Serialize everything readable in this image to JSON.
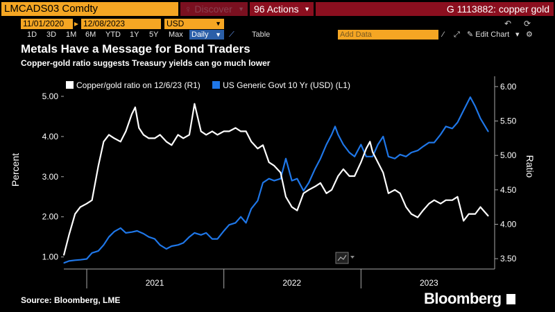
{
  "topbar": {
    "ticker": "LMCADS03 Comdty",
    "discover": "Discover",
    "actions": "Actions",
    "title": "G 1113882: copper gold"
  },
  "daterow": {
    "start_date": "11/01/2020",
    "end_date": "12/08/2023",
    "currency": "USD"
  },
  "rangerow": {
    "ranges": [
      "1D",
      "3D",
      "1M",
      "6M",
      "YTD",
      "1Y",
      "5Y",
      "Max"
    ],
    "frequency": "Daily",
    "table_label": "Table",
    "add_data_placeholder": "Add Data",
    "edit_chart": "Edit Chart"
  },
  "headline": "Metals Have a Message for Bond Traders",
  "subhead": "Copper-gold ratio suggests Treasury yields can go much lower",
  "footer": {
    "source": "Source: Bloomberg, LME",
    "brand": "Bloomberg"
  },
  "colors": {
    "copper_gold_line": "#ffffff",
    "yield_line": "#1f77e8",
    "ticker_bg": "#f5a623",
    "bar_red": "#8b0f1f"
  },
  "chart_data": {
    "type": "line",
    "left_axis": {
      "label": "Percent",
      "ticks": [
        "1.00",
        "2.00",
        "3.00",
        "4.00",
        "5.00"
      ],
      "range": [
        0.7,
        5.5
      ]
    },
    "right_axis": {
      "label": "Ratio",
      "ticks": [
        "3.50",
        "4.00",
        "4.50",
        "5.00",
        "5.50",
        "6.00"
      ],
      "range": [
        3.35,
        6.15
      ]
    },
    "x_axis": {
      "ticks": [
        "2021",
        "2022",
        "2023"
      ]
    },
    "series": [
      {
        "name": "Copper/gold ratio on 12/6/23 (R1)",
        "axis": "right",
        "points": [
          [
            "2020-11-01",
            3.55
          ],
          [
            "2020-11-15",
            3.85
          ],
          [
            "2020-12-01",
            4.15
          ],
          [
            "2020-12-15",
            4.25
          ],
          [
            "2021-01-01",
            4.3
          ],
          [
            "2021-01-15",
            4.35
          ],
          [
            "2021-02-01",
            4.85
          ],
          [
            "2021-02-15",
            5.2
          ],
          [
            "2021-03-01",
            5.3
          ],
          [
            "2021-03-15",
            5.25
          ],
          [
            "2021-04-01",
            5.2
          ],
          [
            "2021-04-15",
            5.35
          ],
          [
            "2021-05-01",
            5.6
          ],
          [
            "2021-05-10",
            5.7
          ],
          [
            "2021-05-20",
            5.4
          ],
          [
            "2021-06-01",
            5.3
          ],
          [
            "2021-06-15",
            5.25
          ],
          [
            "2021-07-01",
            5.25
          ],
          [
            "2021-07-15",
            5.3
          ],
          [
            "2021-08-01",
            5.2
          ],
          [
            "2021-08-15",
            5.15
          ],
          [
            "2021-09-01",
            5.3
          ],
          [
            "2021-09-15",
            5.25
          ],
          [
            "2021-10-01",
            5.3
          ],
          [
            "2021-10-15",
            5.75
          ],
          [
            "2021-11-01",
            5.35
          ],
          [
            "2021-11-15",
            5.3
          ],
          [
            "2021-12-01",
            5.35
          ],
          [
            "2021-12-15",
            5.3
          ],
          [
            "2022-01-01",
            5.35
          ],
          [
            "2022-01-15",
            5.35
          ],
          [
            "2022-02-01",
            5.4
          ],
          [
            "2022-02-15",
            5.35
          ],
          [
            "2022-03-01",
            5.35
          ],
          [
            "2022-03-15",
            5.2
          ],
          [
            "2022-04-01",
            5.1
          ],
          [
            "2022-04-15",
            5.15
          ],
          [
            "2022-05-01",
            4.9
          ],
          [
            "2022-05-15",
            4.85
          ],
          [
            "2022-06-01",
            4.75
          ],
          [
            "2022-06-15",
            4.4
          ],
          [
            "2022-07-01",
            4.25
          ],
          [
            "2022-07-15",
            4.2
          ],
          [
            "2022-08-01",
            4.45
          ],
          [
            "2022-08-15",
            4.5
          ],
          [
            "2022-09-01",
            4.55
          ],
          [
            "2022-09-15",
            4.6
          ],
          [
            "2022-10-01",
            4.45
          ],
          [
            "2022-10-15",
            4.5
          ],
          [
            "2022-11-01",
            4.7
          ],
          [
            "2022-11-15",
            4.8
          ],
          [
            "2022-12-01",
            4.7
          ],
          [
            "2022-12-15",
            4.7
          ],
          [
            "2023-01-01",
            4.9
          ],
          [
            "2023-01-15",
            5.1
          ],
          [
            "2023-01-25",
            5.2
          ],
          [
            "2023-02-01",
            5.05
          ],
          [
            "2023-02-15",
            4.9
          ],
          [
            "2023-03-01",
            4.75
          ],
          [
            "2023-03-15",
            4.45
          ],
          [
            "2023-04-01",
            4.5
          ],
          [
            "2023-04-15",
            4.45
          ],
          [
            "2023-05-01",
            4.25
          ],
          [
            "2023-05-15",
            4.15
          ],
          [
            "2023-06-01",
            4.1
          ],
          [
            "2023-06-15",
            4.2
          ],
          [
            "2023-07-01",
            4.3
          ],
          [
            "2023-07-15",
            4.35
          ],
          [
            "2023-08-01",
            4.3
          ],
          [
            "2023-08-15",
            4.35
          ],
          [
            "2023-09-01",
            4.35
          ],
          [
            "2023-09-15",
            4.4
          ],
          [
            "2023-10-01",
            4.05
          ],
          [
            "2023-10-15",
            4.15
          ],
          [
            "2023-11-01",
            4.15
          ],
          [
            "2023-11-15",
            4.25
          ],
          [
            "2023-12-06",
            4.12
          ]
        ]
      },
      {
        "name": "US Generic Govt 10 Yr (USD) (L1)",
        "axis": "left",
        "points": [
          [
            "2020-11-01",
            0.85
          ],
          [
            "2020-11-15",
            0.9
          ],
          [
            "2020-12-01",
            0.92
          ],
          [
            "2020-12-15",
            0.93
          ],
          [
            "2021-01-01",
            0.95
          ],
          [
            "2021-01-15",
            1.1
          ],
          [
            "2021-02-01",
            1.15
          ],
          [
            "2021-02-15",
            1.3
          ],
          [
            "2021-03-01",
            1.5
          ],
          [
            "2021-03-15",
            1.63
          ],
          [
            "2021-04-01",
            1.72
          ],
          [
            "2021-04-15",
            1.6
          ],
          [
            "2021-05-01",
            1.62
          ],
          [
            "2021-05-15",
            1.65
          ],
          [
            "2021-06-01",
            1.58
          ],
          [
            "2021-06-15",
            1.5
          ],
          [
            "2021-07-01",
            1.45
          ],
          [
            "2021-07-15",
            1.3
          ],
          [
            "2021-08-01",
            1.2
          ],
          [
            "2021-08-15",
            1.27
          ],
          [
            "2021-09-01",
            1.3
          ],
          [
            "2021-09-15",
            1.35
          ],
          [
            "2021-10-01",
            1.5
          ],
          [
            "2021-10-15",
            1.6
          ],
          [
            "2021-11-01",
            1.55
          ],
          [
            "2021-11-15",
            1.6
          ],
          [
            "2021-12-01",
            1.45
          ],
          [
            "2021-12-15",
            1.45
          ],
          [
            "2022-01-01",
            1.65
          ],
          [
            "2022-01-15",
            1.8
          ],
          [
            "2022-02-01",
            1.85
          ],
          [
            "2022-02-15",
            2.0
          ],
          [
            "2022-03-01",
            1.85
          ],
          [
            "2022-03-15",
            2.2
          ],
          [
            "2022-04-01",
            2.4
          ],
          [
            "2022-04-15",
            2.85
          ],
          [
            "2022-05-01",
            2.95
          ],
          [
            "2022-05-15",
            2.9
          ],
          [
            "2022-06-01",
            2.95
          ],
          [
            "2022-06-15",
            3.45
          ],
          [
            "2022-07-01",
            2.9
          ],
          [
            "2022-07-15",
            2.95
          ],
          [
            "2022-08-01",
            2.65
          ],
          [
            "2022-08-15",
            2.85
          ],
          [
            "2022-09-01",
            3.2
          ],
          [
            "2022-09-15",
            3.45
          ],
          [
            "2022-10-01",
            3.8
          ],
          [
            "2022-10-15",
            4.05
          ],
          [
            "2022-10-24",
            4.25
          ],
          [
            "2022-11-01",
            4.05
          ],
          [
            "2022-11-15",
            3.8
          ],
          [
            "2022-12-01",
            3.6
          ],
          [
            "2022-12-15",
            3.5
          ],
          [
            "2023-01-01",
            3.8
          ],
          [
            "2023-01-15",
            3.5
          ],
          [
            "2023-02-01",
            3.5
          ],
          [
            "2023-02-15",
            3.8
          ],
          [
            "2023-03-01",
            4.0
          ],
          [
            "2023-03-15",
            3.5
          ],
          [
            "2023-04-01",
            3.45
          ],
          [
            "2023-04-15",
            3.55
          ],
          [
            "2023-05-01",
            3.5
          ],
          [
            "2023-05-15",
            3.6
          ],
          [
            "2023-06-01",
            3.65
          ],
          [
            "2023-06-15",
            3.75
          ],
          [
            "2023-07-01",
            3.85
          ],
          [
            "2023-07-15",
            3.85
          ],
          [
            "2023-08-01",
            4.05
          ],
          [
            "2023-08-15",
            4.25
          ],
          [
            "2023-09-01",
            4.2
          ],
          [
            "2023-09-15",
            4.35
          ],
          [
            "2023-10-01",
            4.65
          ],
          [
            "2023-10-19",
            4.98
          ],
          [
            "2023-11-01",
            4.75
          ],
          [
            "2023-11-15",
            4.45
          ],
          [
            "2023-12-06",
            4.12
          ]
        ]
      }
    ]
  }
}
